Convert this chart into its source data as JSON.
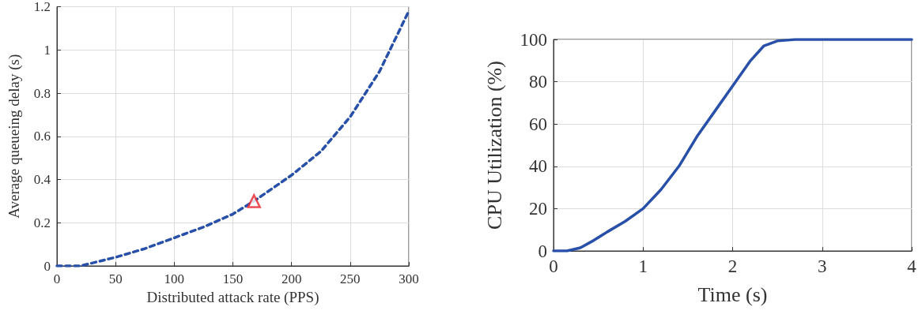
{
  "chart_data": [
    {
      "type": "line",
      "xlabel": "Distributed attack rate (PPS)",
      "ylabel": "Average queueing delay (s)",
      "xlim": [
        0,
        300
      ],
      "xticks": [
        0,
        50,
        100,
        150,
        200,
        250,
        300
      ],
      "ylim": [
        0,
        1.2
      ],
      "yticks": [
        0,
        0.2,
        0.4,
        0.6,
        0.8,
        1,
        1.2
      ],
      "grid": true,
      "line_style": "dashed",
      "marker": "none",
      "series": [
        {
          "type": "line",
          "color": "#2850a8",
          "x": [
            0,
            20,
            50,
            75,
            100,
            125,
            150,
            168,
            200,
            225,
            250,
            275,
            300
          ],
          "values": [
            0,
            0,
            0.04,
            0.08,
            0.13,
            0.18,
            0.24,
            0.3,
            0.42,
            0.53,
            0.69,
            0.9,
            1.18
          ]
        },
        {
          "type": "scatter",
          "color": "#e8202a",
          "marker": "triangle",
          "x": [
            168
          ],
          "values": [
            0.3
          ]
        }
      ]
    },
    {
      "type": "line",
      "xlabel": "Time (s)",
      "ylabel": "CPU Utilization (%)",
      "xlim": [
        0,
        4
      ],
      "xticks": [
        0,
        1,
        2,
        3,
        4
      ],
      "ylim": [
        0,
        100
      ],
      "yticks": [
        0,
        20,
        40,
        60,
        80,
        100
      ],
      "grid": true,
      "line_style": "solid",
      "marker": "none",
      "series": [
        {
          "color": "#2850a8",
          "x": [
            0,
            0.15,
            0.3,
            0.45,
            0.6,
            0.8,
            1,
            1.2,
            1.4,
            1.6,
            1.8,
            2,
            2.2,
            2.35,
            2.5,
            2.7,
            3,
            4
          ],
          "values": [
            0,
            0,
            1.5,
            5,
            9,
            14,
            20,
            29,
            40,
            54,
            66,
            78,
            90,
            97,
            99.3,
            100,
            100,
            100
          ]
        }
      ]
    }
  ]
}
